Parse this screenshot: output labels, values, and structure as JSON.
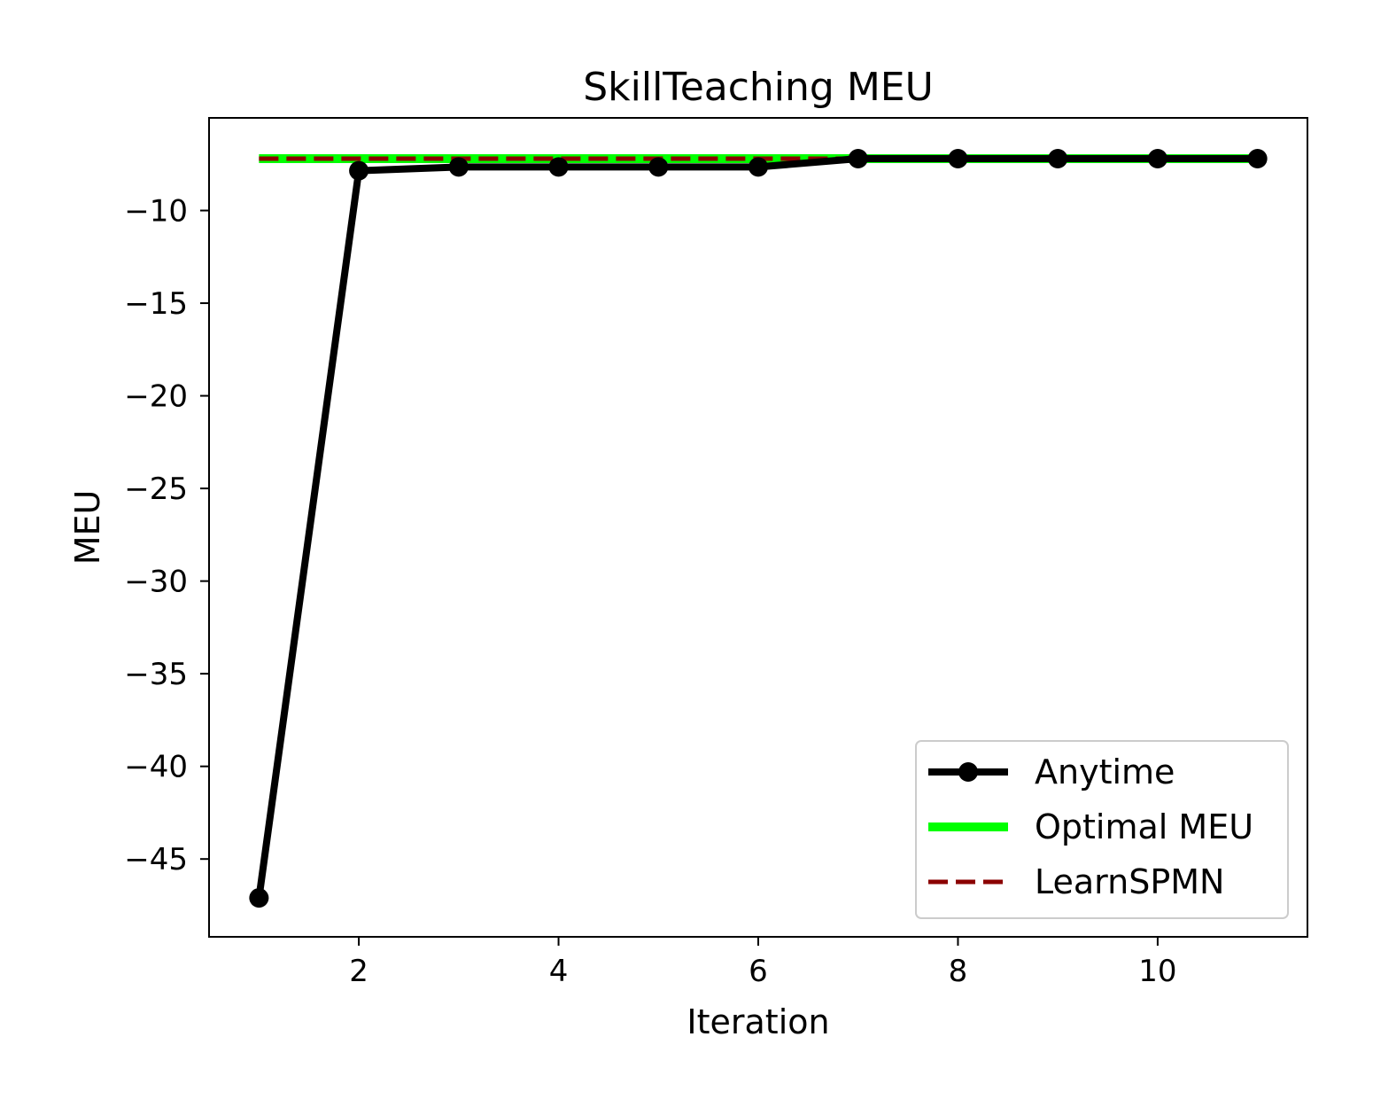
{
  "chart_data": {
    "type": "line",
    "title": "SkillTeaching MEU",
    "xlabel": "Iteration",
    "ylabel": "MEU",
    "xlim": [
      0.5,
      11.5
    ],
    "ylim": [
      -49.2,
      -5.0
    ],
    "x_ticks": [
      2,
      4,
      6,
      8,
      10
    ],
    "x_tick_labels": [
      "2",
      "4",
      "6",
      "8",
      "10"
    ],
    "y_ticks": [
      -45,
      -40,
      -35,
      -30,
      -25,
      -20,
      -15,
      -10
    ],
    "y_tick_labels": [
      "−45",
      "−40",
      "−35",
      "−30",
      "−25",
      "−20",
      "−15",
      "−10"
    ],
    "grid": false,
    "legend_position": "lower-right",
    "x": [
      1,
      2,
      3,
      4,
      5,
      6,
      7,
      8,
      9,
      10,
      11
    ],
    "series": [
      {
        "name": "Anytime",
        "color": "#000000",
        "style": "solid-with-markers",
        "values": [
          -47.1,
          -7.85,
          -7.65,
          -7.65,
          -7.65,
          -7.65,
          -7.2,
          -7.2,
          -7.2,
          -7.2,
          -7.2
        ]
      },
      {
        "name": "Optimal MEU",
        "color": "#00ff00",
        "style": "solid",
        "values": [
          -7.2,
          -7.2,
          -7.2,
          -7.2,
          -7.2,
          -7.2,
          -7.2,
          -7.2,
          -7.2,
          -7.2,
          -7.2
        ]
      },
      {
        "name": "LearnSPMN",
        "color": "#8b0000",
        "style": "dashed",
        "values": [
          -7.2,
          -7.2,
          -7.2,
          -7.2,
          -7.2,
          -7.2,
          -7.2,
          -7.2,
          -7.2,
          -7.2,
          -7.2
        ]
      }
    ]
  }
}
